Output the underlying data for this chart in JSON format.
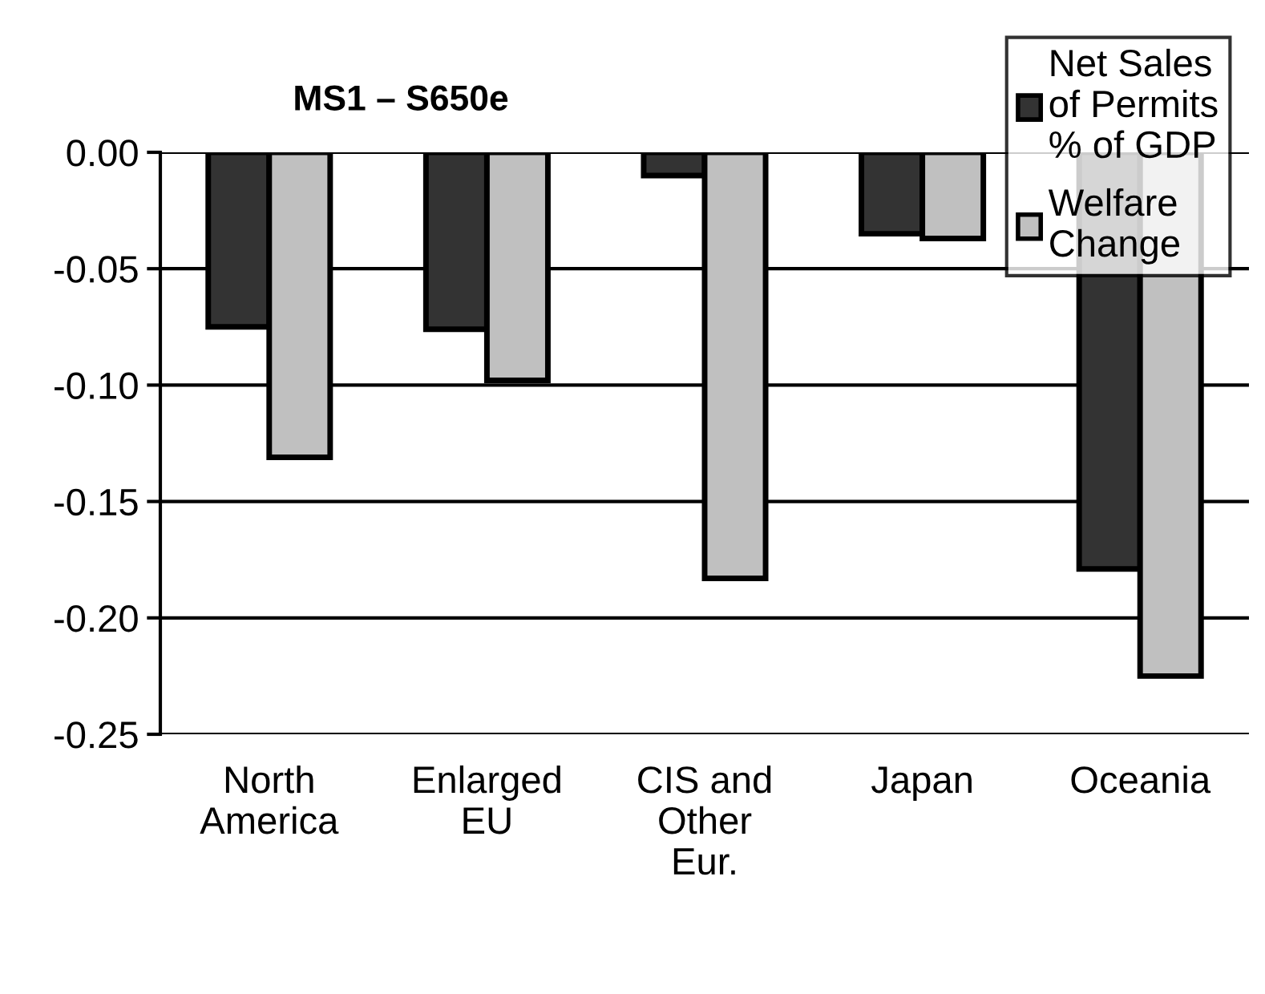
{
  "chart_data": {
    "type": "bar",
    "title": "MS1 – S650e",
    "categories": [
      "North\nAmerica",
      "Enlarged\nEU",
      "CIS and\nOther\nEur.",
      "Japan",
      "Oceania"
    ],
    "series": [
      {
        "name": "Net Sales\nof Permits\n% of GDP",
        "color": "#333333",
        "values": [
          -0.075,
          -0.076,
          -0.01,
          -0.035,
          -0.179
        ]
      },
      {
        "name": "Welfare\nChange",
        "color": "#c0c0c0",
        "values": [
          -0.131,
          -0.098,
          -0.183,
          -0.037,
          -0.225
        ]
      }
    ],
    "ylim": [
      -0.25,
      0
    ],
    "yticks": [
      {
        "value": 0,
        "label": "0.00"
      },
      {
        "value": -0.05,
        "label": "-0.05"
      },
      {
        "value": -0.1,
        "label": "-0.10"
      },
      {
        "value": -0.15,
        "label": "-0.15"
      },
      {
        "value": -0.2,
        "label": "-0.20"
      },
      {
        "value": -0.25,
        "label": "-0.25"
      }
    ],
    "grid": "y",
    "legend": "top right"
  }
}
